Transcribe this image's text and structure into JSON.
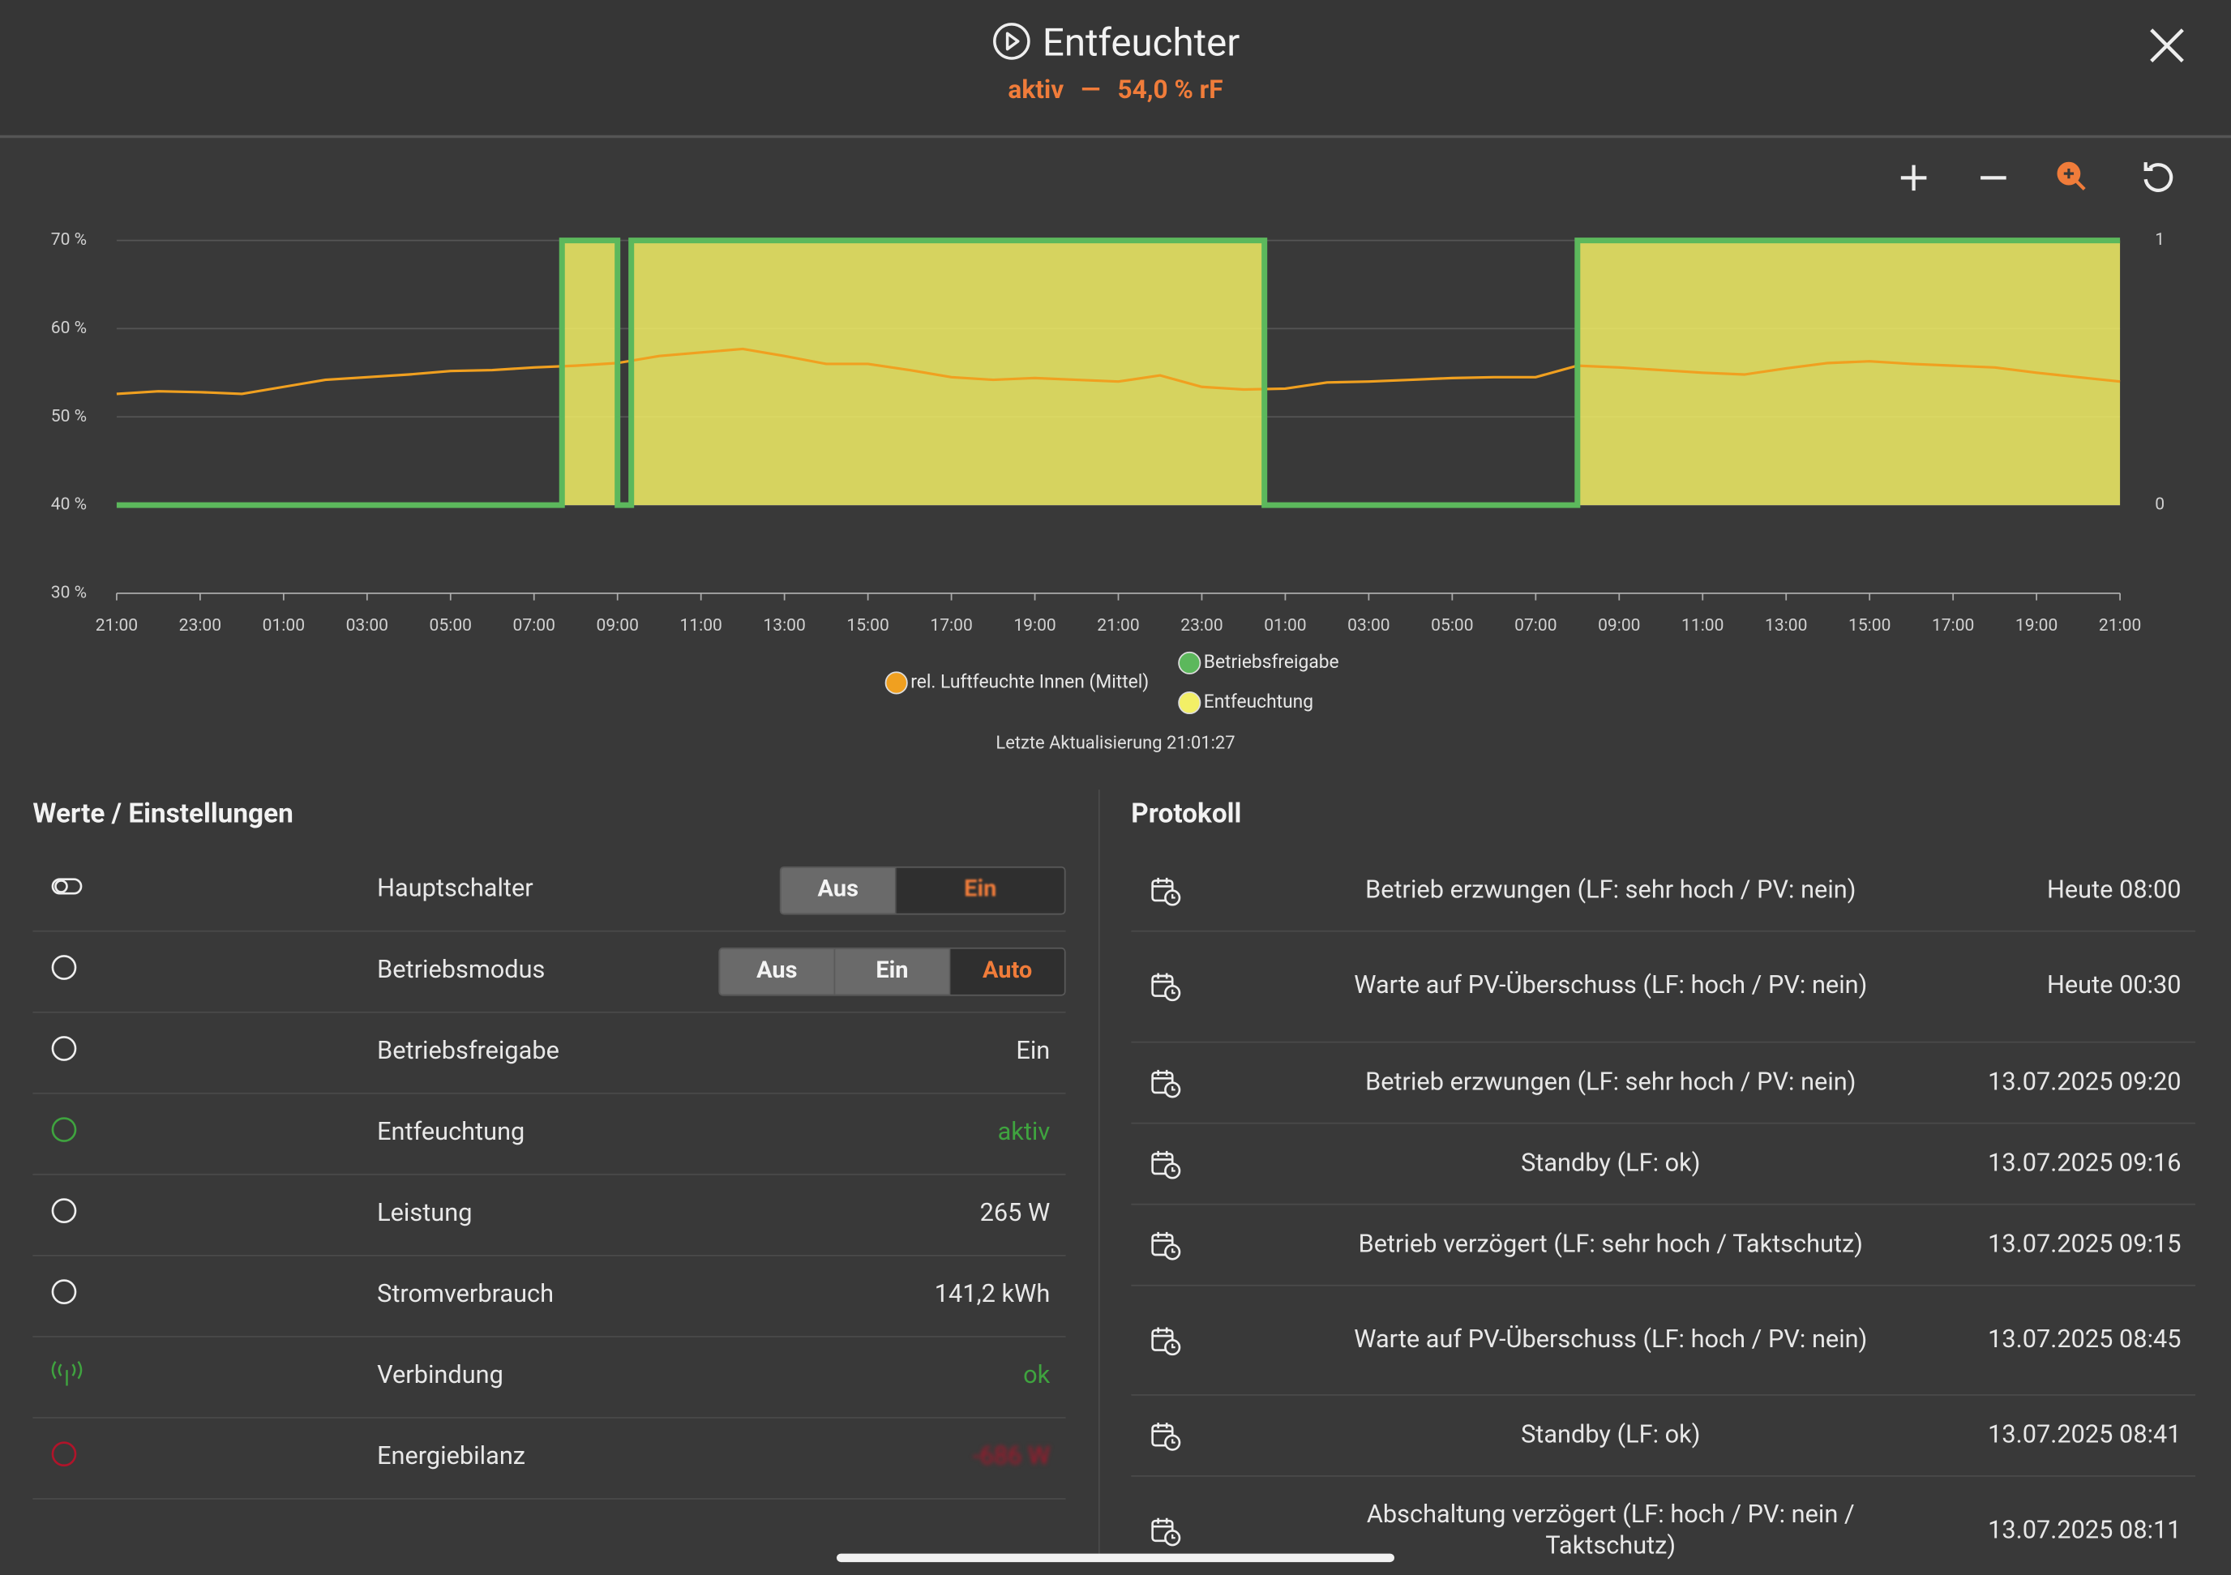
{
  "header": {
    "title": "Entfeuchter",
    "status": "aktiv",
    "separator": "—",
    "value": "54,0 % rF"
  },
  "chart_data": {
    "type": "line",
    "xlim": [
      0,
      48
    ],
    "xticks": [
      {
        "value": 0,
        "label": "21:00"
      },
      {
        "value": 2,
        "label": "23:00"
      },
      {
        "value": 4,
        "label": "01:00"
      },
      {
        "value": 6,
        "label": "03:00"
      },
      {
        "value": 8,
        "label": "05:00"
      },
      {
        "value": 10,
        "label": "07:00"
      },
      {
        "value": 12,
        "label": "09:00"
      },
      {
        "value": 14,
        "label": "11:00"
      },
      {
        "value": 16,
        "label": "13:00"
      },
      {
        "value": 18,
        "label": "15:00"
      },
      {
        "value": 20,
        "label": "17:00"
      },
      {
        "value": 22,
        "label": "19:00"
      },
      {
        "value": 24,
        "label": "21:00"
      },
      {
        "value": 26,
        "label": "23:00"
      },
      {
        "value": 28,
        "label": "01:00"
      },
      {
        "value": 30,
        "label": "03:00"
      },
      {
        "value": 32,
        "label": "05:00"
      },
      {
        "value": 34,
        "label": "07:00"
      },
      {
        "value": 36,
        "label": "09:00"
      },
      {
        "value": 38,
        "label": "11:00"
      },
      {
        "value": 40,
        "label": "13:00"
      },
      {
        "value": 42,
        "label": "15:00"
      },
      {
        "value": 44,
        "label": "17:00"
      },
      {
        "value": 46,
        "label": "19:00"
      },
      {
        "value": 48,
        "label": "21:00"
      }
    ],
    "ylim": [
      30,
      70
    ],
    "yticks": [
      {
        "value": 30,
        "label": "30 %"
      },
      {
        "value": 40,
        "label": "40 %"
      },
      {
        "value": 50,
        "label": "50 %"
      },
      {
        "value": 60,
        "label": "60 %"
      },
      {
        "value": 70,
        "label": "70 %"
      }
    ],
    "y2lim": [
      -0.333,
      1
    ],
    "y2ticks": [
      0,
      1
    ],
    "grid": true,
    "series": [
      {
        "name": "rel. Luftfeuchte Innen (Mittel)",
        "color": "#f0a020",
        "x": [
          0,
          1,
          2,
          3,
          4,
          5,
          6,
          7,
          8,
          9,
          10,
          11,
          12,
          13,
          14,
          15,
          16,
          17,
          18,
          19,
          20,
          21,
          22,
          23,
          24,
          25,
          26,
          27,
          28,
          29,
          30,
          31,
          32,
          33,
          34,
          35,
          36,
          37,
          38,
          39,
          40,
          41,
          42,
          43,
          44,
          45,
          46,
          47,
          48
        ],
        "values": [
          52.6,
          52.9,
          52.8,
          52.6,
          53.4,
          54.2,
          54.5,
          54.8,
          55.2,
          55.3,
          55.6,
          55.8,
          56.1,
          56.9,
          57.3,
          57.7,
          56.9,
          56.0,
          56.0,
          55.3,
          54.5,
          54.2,
          54.4,
          54.2,
          54.0,
          54.7,
          53.4,
          53.1,
          53.2,
          53.9,
          54.0,
          54.2,
          54.4,
          54.5,
          54.5,
          55.8,
          55.6,
          55.3,
          55.0,
          54.8,
          55.5,
          56.1,
          56.3,
          56.0,
          55.8,
          55.6,
          55.0,
          54.5,
          54.0
        ]
      },
      {
        "name": "Betriebsfreigabe",
        "type": "step",
        "axis": "y2",
        "color": "#5cb85c",
        "x": [
          0,
          10.67,
          12.0,
          12.33,
          27.5,
          35,
          48
        ],
        "values": [
          0,
          1,
          0,
          1,
          0,
          1,
          1
        ]
      },
      {
        "name": "Entfeuchtung",
        "type": "step-area",
        "axis": "y2",
        "color": "#f2ef66",
        "x": [
          0,
          10.67,
          12.0,
          12.33,
          27.5,
          35,
          48
        ],
        "values": [
          0,
          1,
          0,
          1,
          0,
          1,
          1
        ]
      }
    ]
  },
  "update": "Letzte Aktualisierung 21:01:27",
  "settings": {
    "title": "Werte / Einstellungen",
    "rows": [
      {
        "label": "Hauptschalter",
        "options": [
          "Aus",
          "Ein"
        ]
      },
      {
        "label": "Betriebsmodus",
        "options": [
          "Aus",
          "Ein",
          "Auto"
        ]
      },
      {
        "label": "Betriebsfreigabe",
        "value": "Ein"
      },
      {
        "label": "Entfeuchtung",
        "value": "aktiv"
      },
      {
        "label": "Leistung",
        "value": "265 W"
      },
      {
        "label": "Stromverbrauch",
        "value": "141,2 kWh"
      },
      {
        "label": "Verbindung",
        "value": "ok"
      },
      {
        "label": "Energiebilanz",
        "value": "-686 W"
      }
    ]
  },
  "log": {
    "title": "Protokoll",
    "entries": [
      {
        "text": "Betrieb erzwungen (LF: sehr hoch / PV: nein)",
        "time": "Heute 08:00"
      },
      {
        "text": "Warte auf PV-Überschuss (LF: hoch / PV: nein)",
        "time": "Heute 00:30"
      },
      {
        "text": "Betrieb erzwungen (LF: sehr hoch / PV: nein)",
        "time": "13.07.2025 09:20"
      },
      {
        "text": "Standby (LF: ok)",
        "time": "13.07.2025 09:16"
      },
      {
        "text": "Betrieb verzögert (LF: sehr hoch / Taktschutz)",
        "time": "13.07.2025 09:15"
      },
      {
        "text": "Warte auf PV-Überschuss (LF: hoch / PV: nein)",
        "time": "13.07.2025 08:45"
      },
      {
        "text": "Standby (LF: ok)",
        "time": "13.07.2025 08:41"
      },
      {
        "text": "Abschaltung verzögert (LF: hoch / PV: nein / Taktschutz)",
        "time": "13.07.2025 08:11"
      }
    ]
  }
}
